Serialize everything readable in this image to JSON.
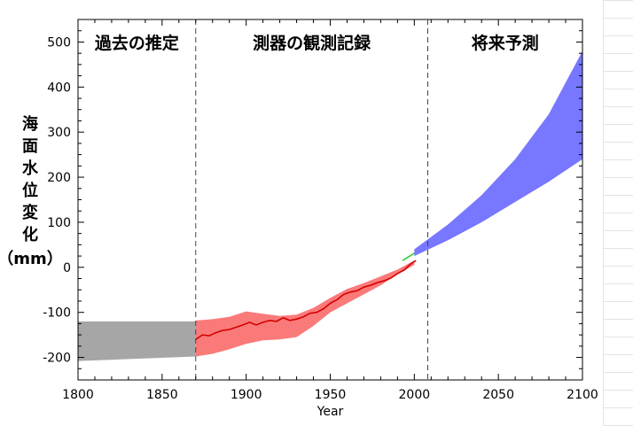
{
  "chart_data": {
    "type": "area",
    "xlabel": "Year",
    "ylabel": "海面水位変化（mm）",
    "xlim": [
      1800,
      2100
    ],
    "ylim": [
      -250,
      550
    ],
    "x_ticks": [
      1800,
      1850,
      1900,
      1950,
      2000,
      2050,
      2100
    ],
    "y_ticks": [
      -200,
      -100,
      0,
      100,
      200,
      300,
      400,
      500
    ],
    "sections": [
      {
        "label": "過去の推定",
        "from": 1800,
        "to": 1870
      },
      {
        "label": "測器の観測記録",
        "from": 1870,
        "to": 2008
      },
      {
        "label": "将来予測",
        "from": 2008,
        "to": 2100
      }
    ],
    "dividers": [
      1870,
      2008
    ],
    "series": [
      {
        "kind": "band",
        "color": "#a6a6a6",
        "x": [
          1800,
          1870
        ],
        "upper": [
          -120,
          -120
        ],
        "lower": [
          -208,
          -198
        ]
      },
      {
        "kind": "band",
        "color": "#fa7a7a",
        "x": [
          1870,
          1880,
          1890,
          1900,
          1910,
          1920,
          1930,
          1940,
          1950,
          1960,
          1970,
          1980,
          1990,
          2000
        ],
        "upper": [
          -118,
          -115,
          -110,
          -98,
          -103,
          -108,
          -105,
          -90,
          -68,
          -48,
          -35,
          -20,
          -5,
          15
        ],
        "lower": [
          -198,
          -192,
          -182,
          -170,
          -162,
          -160,
          -155,
          -130,
          -100,
          -80,
          -60,
          -40,
          -15,
          5
        ]
      },
      {
        "kind": "line",
        "color": "#d40000",
        "x": [
          1870,
          1874,
          1878,
          1882,
          1886,
          1890,
          1894,
          1898,
          1902,
          1906,
          1910,
          1914,
          1918,
          1922,
          1926,
          1930,
          1934,
          1938,
          1942,
          1946,
          1950,
          1954,
          1958,
          1962,
          1966,
          1970,
          1974,
          1978,
          1982,
          1986,
          1990,
          1994,
          1998,
          2001
        ],
        "values": [
          -160,
          -150,
          -152,
          -145,
          -140,
          -138,
          -133,
          -128,
          -122,
          -128,
          -122,
          -118,
          -120,
          -112,
          -118,
          -115,
          -110,
          -102,
          -100,
          -92,
          -80,
          -72,
          -60,
          -55,
          -52,
          -44,
          -40,
          -34,
          -30,
          -24,
          -14,
          -6,
          8,
          15
        ]
      },
      {
        "kind": "line",
        "color": "#33cc33",
        "x": [
          1993,
          2003
        ],
        "values": [
          15,
          38
        ]
      },
      {
        "kind": "band",
        "color": "#7777ff",
        "x": [
          2000,
          2020,
          2040,
          2060,
          2080,
          2100
        ],
        "upper": [
          40,
          95,
          160,
          240,
          340,
          480
        ],
        "lower": [
          25,
          60,
          100,
          145,
          190,
          240
        ]
      }
    ]
  }
}
